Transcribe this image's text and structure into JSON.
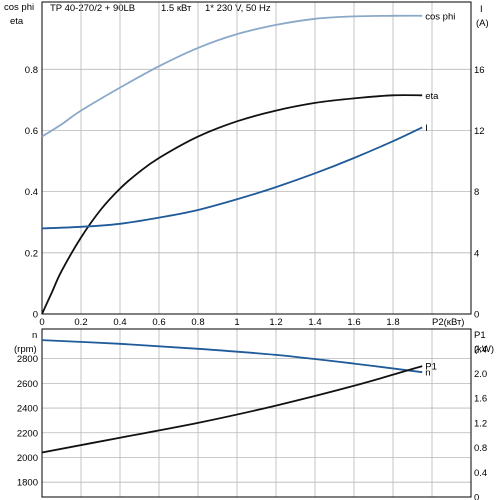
{
  "header": {
    "model": "TP 40-270/2 + 90LB",
    "power": "1.5 кВт",
    "supply": "1* 230 V, 50 Hz"
  },
  "colors": {
    "black": "#111111",
    "blue": "#1f5a9a",
    "lightblue": "#8aa9c8",
    "grid": "#b8b8b8"
  },
  "chart_data": [
    {
      "type": "line",
      "panel": "top",
      "xlabel": "P2(кВт)",
      "xlim": [
        0,
        2.2
      ],
      "x_ticks": [
        "0",
        "0.2",
        "0.4",
        "0.6",
        "0.8",
        "1",
        "1.2",
        "1.4",
        "1.6",
        "1.8"
      ],
      "left_axis": {
        "label_1": "cos phi",
        "label_2": "eta",
        "ylim": [
          0,
          1.02
        ],
        "ticks": [
          "0",
          "0.2",
          "0.4",
          "0.6",
          "0.8"
        ]
      },
      "right_axis": {
        "label_1": "I",
        "label_2": "(A)",
        "ylim": [
          0,
          20.4
        ],
        "ticks": [
          "0",
          "4",
          "8",
          "12",
          "16"
        ]
      },
      "series": [
        {
          "name": "cos phi",
          "axis": "left",
          "color": "#8aa9c8",
          "x": [
            0,
            0.1,
            0.2,
            0.4,
            0.6,
            0.8,
            1.0,
            1.2,
            1.4,
            1.6,
            1.8,
            1.95
          ],
          "y": [
            0.58,
            0.62,
            0.665,
            0.74,
            0.81,
            0.87,
            0.915,
            0.945,
            0.965,
            0.973,
            0.975,
            0.975
          ]
        },
        {
          "name": "eta",
          "axis": "left",
          "color": "#111111",
          "x": [
            0,
            0.05,
            0.1,
            0.2,
            0.3,
            0.4,
            0.5,
            0.6,
            0.8,
            1.0,
            1.2,
            1.4,
            1.6,
            1.8,
            1.95
          ],
          "y": [
            0,
            0.07,
            0.14,
            0.25,
            0.34,
            0.41,
            0.465,
            0.51,
            0.58,
            0.63,
            0.665,
            0.69,
            0.705,
            0.715,
            0.715
          ]
        },
        {
          "name": "I",
          "axis": "right",
          "color": "#1f5a9a",
          "x": [
            0,
            0.2,
            0.4,
            0.6,
            0.8,
            1.0,
            1.2,
            1.4,
            1.6,
            1.8,
            1.95
          ],
          "y": [
            5.6,
            5.7,
            5.9,
            6.3,
            6.8,
            7.5,
            8.3,
            9.2,
            10.2,
            11.3,
            12.2
          ]
        }
      ]
    },
    {
      "type": "line",
      "panel": "bottom",
      "xlim": [
        0,
        2.2
      ],
      "left_axis": {
        "label_1": "n",
        "label_2": "(rpm)",
        "ylim": [
          1680,
          3040
        ],
        "ticks": [
          "1800",
          "2000",
          "2200",
          "2400",
          "2600",
          "2800"
        ]
      },
      "right_axis": {
        "label_1": "P1",
        "label_2": "(kW)",
        "ylim": [
          0,
          2.72
        ],
        "ticks": [
          "0",
          "0.4",
          "0.8",
          "1.2",
          "1.6",
          "2.0",
          "2.4"
        ]
      },
      "series": [
        {
          "name": "n",
          "axis": "left",
          "color": "#1f5a9a",
          "x": [
            0,
            0.4,
            0.8,
            1.2,
            1.6,
            1.95
          ],
          "y": [
            2950,
            2920,
            2880,
            2830,
            2760,
            2690
          ]
        },
        {
          "name": "P1",
          "axis": "right",
          "color": "#111111",
          "x": [
            0,
            0.4,
            0.8,
            1.2,
            1.6,
            1.95
          ],
          "y": [
            0.72,
            0.96,
            1.2,
            1.48,
            1.8,
            2.12
          ]
        }
      ]
    }
  ]
}
